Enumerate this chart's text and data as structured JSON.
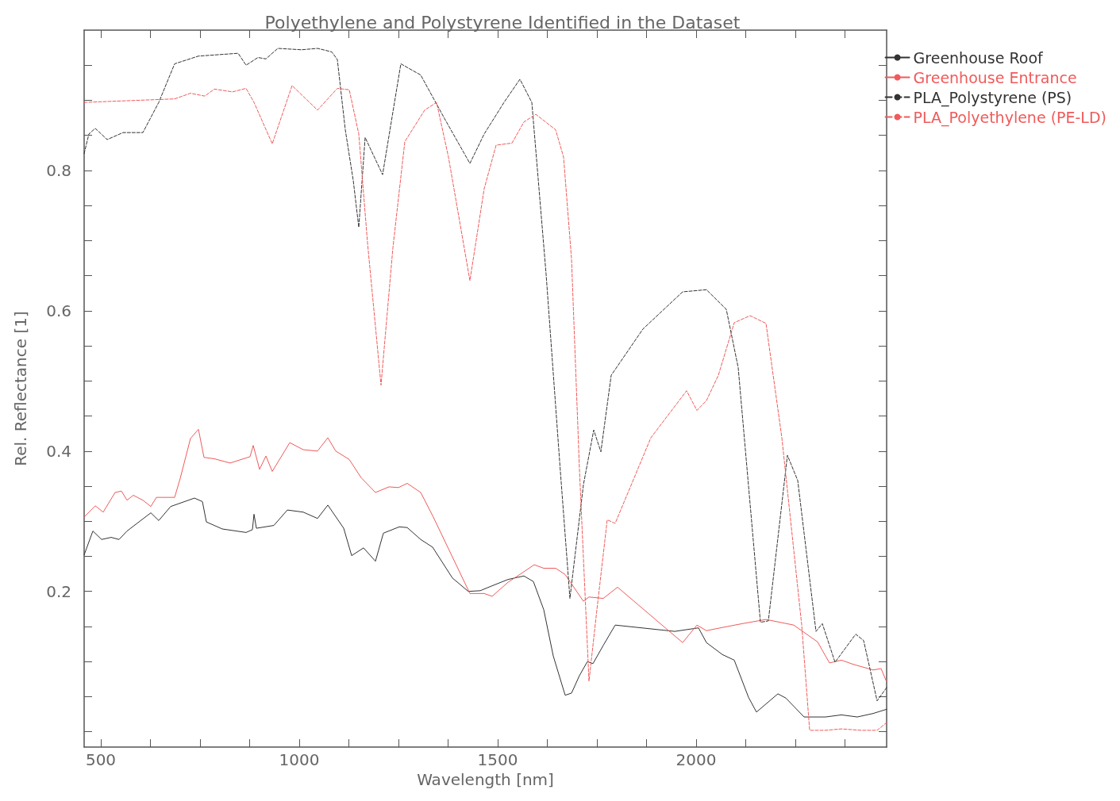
{
  "chart_data": {
    "type": "line",
    "title": "Polyethylene and Polystyrene Identified in the Dataset",
    "xlabel": "Wavelength [nm]",
    "ylabel": "Rel. Reflectance [1]",
    "xlim": [
      458,
      2480
    ],
    "ylim": [
      -0.022,
      1.0
    ],
    "xticks": [
      500,
      {
        "value": 625,
        "label": null
      },
      {
        "value": 750,
        "label": null
      },
      {
        "value": 875,
        "label": null
      },
      1000,
      {
        "value": 1125,
        "label": null
      },
      {
        "value": 1250,
        "label": null
      },
      {
        "value": 1375,
        "label": null
      },
      1500,
      {
        "value": 1625,
        "label": null
      },
      {
        "value": 1750,
        "label": null
      },
      {
        "value": 1875,
        "label": null
      },
      2000,
      {
        "value": 2125,
        "label": null
      },
      {
        "value": 2250,
        "label": null
      },
      {
        "value": 2375,
        "label": null
      }
    ],
    "yticks": [
      {
        "value": 0,
        "label": null
      },
      {
        "value": 0.05,
        "label": null
      },
      {
        "value": 0.1,
        "label": null
      },
      {
        "value": 0.15,
        "label": null
      },
      {
        "value": 0.2,
        "label": "0.2"
      },
      {
        "value": 0.25,
        "label": null
      },
      {
        "value": 0.3,
        "label": null
      },
      {
        "value": 0.35,
        "label": null
      },
      {
        "value": 0.4,
        "label": "0.4"
      },
      {
        "value": 0.45,
        "label": null
      },
      {
        "value": 0.5,
        "label": null
      },
      {
        "value": 0.55,
        "label": null
      },
      {
        "value": 0.6,
        "label": "0.6"
      },
      {
        "value": 0.65,
        "label": null
      },
      {
        "value": 0.7,
        "label": null
      },
      {
        "value": 0.75,
        "label": null
      },
      {
        "value": 0.8,
        "label": "0.8"
      },
      {
        "value": 0.85,
        "label": null
      },
      {
        "value": 0.9,
        "label": null
      },
      {
        "value": 0.95,
        "label": null
      }
    ],
    "grid": false,
    "legend": "top right",
    "marker": "none",
    "series": [
      {
        "name": "Greenhouse Roof",
        "color": "#333333",
        "line_style": "solid",
        "x": [
          458,
          480,
          502,
          526,
          546,
          566,
          626,
          646,
          676,
          736,
          756,
          766,
          806,
          866,
          882,
          886,
          892,
          936,
          970,
          1010,
          1046,
          1072,
          1112,
          1132,
          1162,
          1192,
          1212,
          1252,
          1272,
          1306,
          1336,
          1386,
          1426,
          1456,
          1486,
          1526,
          1566,
          1590,
          1616,
          1640,
          1670,
          1686,
          1706,
          1726,
          1740,
          1766,
          1796,
          1946,
          2006,
          2026,
          2066,
          2096,
          2132,
          2152,
          2206,
          2226,
          2272,
          2326,
          2366,
          2406,
          2446,
          2480
        ],
        "values": [
          0.252,
          0.286,
          0.274,
          0.277,
          0.274,
          0.286,
          0.312,
          0.301,
          0.321,
          0.333,
          0.328,
          0.299,
          0.289,
          0.284,
          0.288,
          0.31,
          0.29,
          0.294,
          0.316,
          0.313,
          0.304,
          0.323,
          0.29,
          0.251,
          0.262,
          0.243,
          0.283,
          0.292,
          0.291,
          0.274,
          0.263,
          0.219,
          0.2,
          0.201,
          0.208,
          0.217,
          0.222,
          0.214,
          0.174,
          0.108,
          0.052,
          0.055,
          0.08,
          0.1,
          0.097,
          0.123,
          0.152,
          0.143,
          0.148,
          0.127,
          0.11,
          0.102,
          0.049,
          0.028,
          0.054,
          0.048,
          0.021,
          0.021,
          0.024,
          0.021,
          0.026,
          0.032
        ]
      },
      {
        "name": "Greenhouse Entrance",
        "color": "#f05a5a",
        "line_style": "solid",
        "x": [
          458,
          486,
          506,
          536,
          552,
          566,
          582,
          606,
          626,
          640,
          686,
          700,
          726,
          746,
          760,
          786,
          826,
          876,
          884,
          900,
          916,
          932,
          976,
          1010,
          1046,
          1072,
          1092,
          1126,
          1156,
          1192,
          1226,
          1250,
          1272,
          1306,
          1336,
          1430,
          1466,
          1486,
          1526,
          1566,
          1592,
          1616,
          1646,
          1670,
          1716,
          1730,
          1766,
          1802,
          1966,
          2002,
          2026,
          2070,
          2116,
          2176,
          2246,
          2306,
          2336,
          2366,
          2396,
          2446,
          2466,
          2480
        ],
        "values": [
          0.306,
          0.322,
          0.313,
          0.341,
          0.343,
          0.33,
          0.337,
          0.33,
          0.321,
          0.334,
          0.334,
          0.361,
          0.418,
          0.431,
          0.391,
          0.389,
          0.383,
          0.392,
          0.408,
          0.374,
          0.393,
          0.371,
          0.412,
          0.402,
          0.4,
          0.419,
          0.4,
          0.388,
          0.362,
          0.341,
          0.349,
          0.348,
          0.354,
          0.341,
          0.308,
          0.197,
          0.197,
          0.193,
          0.213,
          0.228,
          0.238,
          0.233,
          0.233,
          0.224,
          0.186,
          0.192,
          0.19,
          0.206,
          0.127,
          0.152,
          0.144,
          0.149,
          0.154,
          0.16,
          0.152,
          0.128,
          0.098,
          0.102,
          0.096,
          0.088,
          0.09,
          0.071
        ]
      },
      {
        "name": "PLA_Polystyrene (PS)",
        "color": "#333333",
        "line_style": "dashed",
        "x": [
          458,
          470,
          486,
          516,
          556,
          606,
          646,
          686,
          746,
          846,
          866,
          896,
          916,
          946,
          1006,
          1046,
          1082,
          1096,
          1116,
          1136,
          1150,
          1166,
          1210,
          1256,
          1306,
          1366,
          1430,
          1466,
          1516,
          1556,
          1586,
          1622,
          1656,
          1682,
          1716,
          1742,
          1760,
          1786,
          1866,
          1966,
          2026,
          2076,
          2106,
          2162,
          2182,
          2230,
          2256,
          2302,
          2318,
          2350,
          2402,
          2422,
          2456,
          2480
        ],
        "values": [
          0.824,
          0.852,
          0.86,
          0.844,
          0.854,
          0.854,
          0.897,
          0.952,
          0.963,
          0.967,
          0.95,
          0.961,
          0.959,
          0.974,
          0.972,
          0.974,
          0.969,
          0.958,
          0.858,
          0.786,
          0.719,
          0.847,
          0.794,
          0.952,
          0.936,
          0.874,
          0.81,
          0.852,
          0.897,
          0.93,
          0.897,
          0.652,
          0.386,
          0.19,
          0.352,
          0.43,
          0.399,
          0.508,
          0.574,
          0.627,
          0.63,
          0.602,
          0.519,
          0.156,
          0.158,
          0.394,
          0.358,
          0.143,
          0.154,
          0.099,
          0.139,
          0.13,
          0.044,
          0.063
        ]
      },
      {
        "name": "PLA_Polyethylene (PE-LD)",
        "color": "#f05a5a",
        "line_style": "dashed",
        "x": [
          458,
          686,
          726,
          762,
          786,
          832,
          866,
          886,
          932,
          982,
          1046,
          1096,
          1126,
          1150,
          1172,
          1206,
          1236,
          1266,
          1316,
          1346,
          1376,
          1430,
          1466,
          1496,
          1536,
          1566,
          1596,
          1646,
          1666,
          1686,
          1706,
          1730,
          1750,
          1776,
          1796,
          1886,
          1976,
          2002,
          2026,
          2056,
          2096,
          2136,
          2176,
          2216,
          2266,
          2286,
          2326,
          2366,
          2416,
          2456,
          2480
        ],
        "values": [
          0.897,
          0.902,
          0.91,
          0.906,
          0.916,
          0.912,
          0.917,
          0.897,
          0.838,
          0.921,
          0.886,
          0.917,
          0.915,
          0.852,
          0.697,
          0.494,
          0.69,
          0.841,
          0.886,
          0.897,
          0.819,
          0.643,
          0.774,
          0.836,
          0.839,
          0.869,
          0.88,
          0.858,
          0.819,
          0.674,
          0.374,
          0.072,
          0.174,
          0.302,
          0.297,
          0.419,
          0.486,
          0.458,
          0.472,
          0.508,
          0.583,
          0.593,
          0.582,
          0.419,
          0.152,
          0.002,
          0.002,
          0.004,
          0.002,
          0.002,
          0.013
        ]
      }
    ]
  }
}
